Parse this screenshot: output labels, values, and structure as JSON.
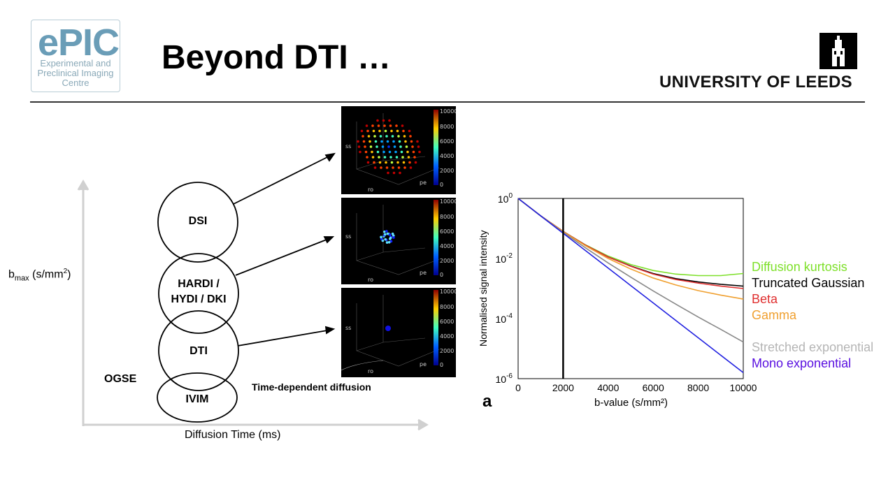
{
  "header": {
    "logo_big": "ePIC",
    "logo_line1": "Experimental and",
    "logo_line2": "Preclinical Imaging",
    "logo_line3": "Centre",
    "title": "Beyond DTI …",
    "university": "UNIVERSITY OF LEEDS"
  },
  "diagram": {
    "y_axis_label": "b",
    "y_axis_sub": "max",
    "y_axis_unit": " (s/mm",
    "y_axis_sup": "2",
    "y_axis_close": ")",
    "x_axis_label": "Diffusion Time (ms)",
    "circles": [
      "DSI",
      "HARDI /",
      "HYDI / DKI",
      "DTI",
      "IVIM"
    ],
    "ogse": "OGSE",
    "time_dependent": "Time-dependent diffusion"
  },
  "panels": {
    "colorbar_ticks": [
      "10000",
      "8000",
      "6000",
      "4000",
      "2000",
      "0"
    ],
    "axis_labels": [
      "ss",
      "ro",
      "pe",
      "0",
      "1",
      "-1"
    ]
  },
  "chart_data": {
    "type": "line",
    "title": "",
    "panel_label": "a",
    "xlabel": "b-value (s/mm²)",
    "ylabel": "Normalised signal intensity",
    "x_ticks": [
      "0",
      "2000",
      "4000",
      "6000",
      "8000",
      "10000"
    ],
    "y_ticks": [
      "10",
      "10",
      "10",
      "10"
    ],
    "y_tick_exps": [
      "0",
      "-2",
      "-4",
      "-6"
    ],
    "xlim": [
      0,
      10000
    ],
    "ylim_log10": [
      -6,
      0
    ],
    "marker_line_x": 2000,
    "x": [
      0,
      1000,
      2000,
      3000,
      4000,
      5000,
      6000,
      7000,
      8000,
      9000,
      10000
    ],
    "series": [
      {
        "name": "Diffusion kurtosis",
        "color": "#7ee02a",
        "log10_values": [
          0,
          -0.58,
          -1.1,
          -1.55,
          -1.92,
          -2.2,
          -2.4,
          -2.52,
          -2.57,
          -2.57,
          -2.5
        ]
      },
      {
        "name": "Truncated Gaussian",
        "color": "#000000",
        "log10_values": [
          0,
          -0.58,
          -1.1,
          -1.56,
          -1.95,
          -2.25,
          -2.5,
          -2.67,
          -2.78,
          -2.86,
          -2.92
        ]
      },
      {
        "name": "Beta",
        "color": "#e03030",
        "log10_values": [
          0,
          -0.58,
          -1.1,
          -1.56,
          -1.95,
          -2.26,
          -2.52,
          -2.7,
          -2.82,
          -2.92,
          -3.0
        ]
      },
      {
        "name": "Gamma",
        "color": "#f0a030",
        "log10_values": [
          0,
          -0.58,
          -1.11,
          -1.58,
          -2.0,
          -2.35,
          -2.65,
          -2.88,
          -3.07,
          -3.22,
          -3.35
        ]
      },
      {
        "name": "Stretched exponential",
        "color": "#888888",
        "log10_values": [
          0,
          -0.58,
          -1.13,
          -1.65,
          -2.15,
          -2.62,
          -3.08,
          -3.52,
          -3.95,
          -4.36,
          -4.78
        ]
      },
      {
        "name": "Mono exponential",
        "color": "#2020e0",
        "log10_values": [
          0,
          -0.58,
          -1.16,
          -1.74,
          -2.32,
          -2.9,
          -3.48,
          -4.06,
          -4.64,
          -5.22,
          -5.8
        ]
      }
    ],
    "legend": [
      {
        "name": "Diffusion kurtosis",
        "color": "#7ee02a"
      },
      {
        "name": "Truncated Gaussian",
        "color": "#000000"
      },
      {
        "name": "Beta",
        "color": "#e03030"
      },
      {
        "name": "Gamma",
        "color": "#f0a030"
      },
      {
        "name": "Stretched exponential",
        "color": "#b5b5b5"
      },
      {
        "name": "Mono exponential",
        "color": "#5a10e0"
      }
    ]
  }
}
